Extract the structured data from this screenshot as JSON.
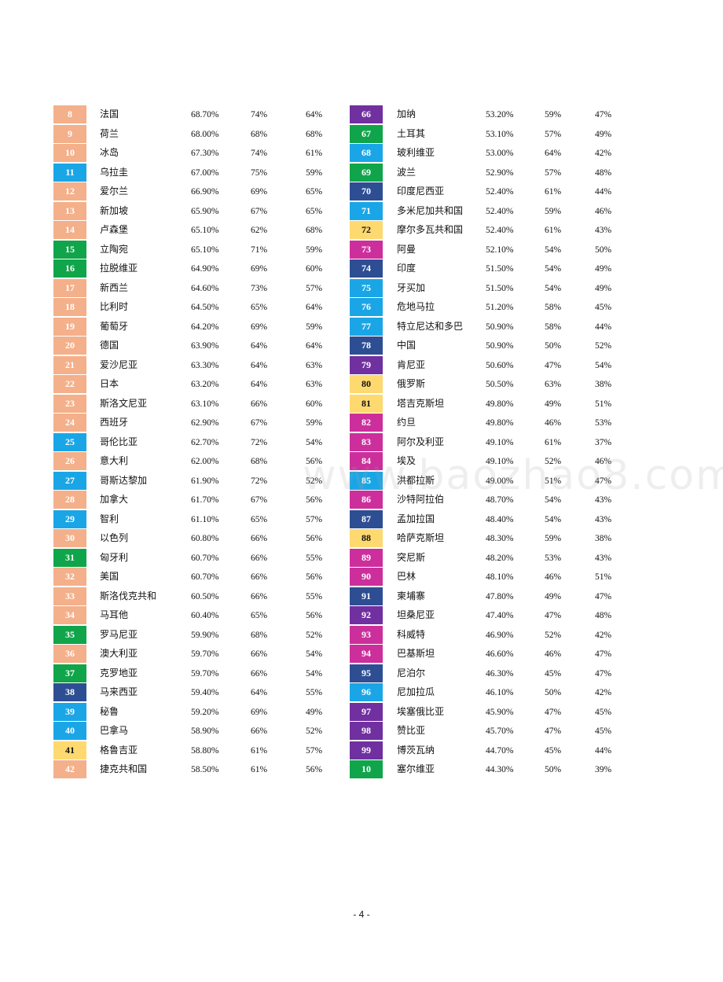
{
  "watermark": "www.baozhao8.com",
  "footer": "- 4 -",
  "colors": {
    "peach": "#F4B08A",
    "blue": "#1AA6E6",
    "green": "#10A54A",
    "navy": "#2E4E93",
    "yellow": "#FDD970",
    "purple": "#7030A0",
    "magenta": "#CC2F9C"
  },
  "left_rows": [
    {
      "rank": "8",
      "country": "法国",
      "v1": "68.70%",
      "v2": "74%",
      "v3": "64%",
      "color": "peach"
    },
    {
      "rank": "9",
      "country": "荷兰",
      "v1": "68.00%",
      "v2": "68%",
      "v3": "68%",
      "color": "peach"
    },
    {
      "rank": "10",
      "country": "冰岛",
      "v1": "67.30%",
      "v2": "74%",
      "v3": "61%",
      "color": "peach"
    },
    {
      "rank": "11",
      "country": "乌拉圭",
      "v1": "67.00%",
      "v2": "75%",
      "v3": "59%",
      "color": "blue"
    },
    {
      "rank": "12",
      "country": "爱尔兰",
      "v1": "66.90%",
      "v2": "69%",
      "v3": "65%",
      "color": "peach"
    },
    {
      "rank": "13",
      "country": "新加坡",
      "v1": "65.90%",
      "v2": "67%",
      "v3": "65%",
      "color": "peach"
    },
    {
      "rank": "14",
      "country": "卢森堡",
      "v1": "65.10%",
      "v2": "62%",
      "v3": "68%",
      "color": "peach"
    },
    {
      "rank": "15",
      "country": "立陶宛",
      "v1": "65.10%",
      "v2": "71%",
      "v3": "59%",
      "color": "green"
    },
    {
      "rank": "16",
      "country": "拉脱维亚",
      "v1": "64.90%",
      "v2": "69%",
      "v3": "60%",
      "color": "green"
    },
    {
      "rank": "17",
      "country": "新西兰",
      "v1": "64.60%",
      "v2": "73%",
      "v3": "57%",
      "color": "peach"
    },
    {
      "rank": "18",
      "country": "比利时",
      "v1": "64.50%",
      "v2": "65%",
      "v3": "64%",
      "color": "peach"
    },
    {
      "rank": "19",
      "country": "葡萄牙",
      "v1": "64.20%",
      "v2": "69%",
      "v3": "59%",
      "color": "peach"
    },
    {
      "rank": "20",
      "country": "德国",
      "v1": "63.90%",
      "v2": "64%",
      "v3": "64%",
      "color": "peach"
    },
    {
      "rank": "21",
      "country": "爱沙尼亚",
      "v1": "63.30%",
      "v2": "64%",
      "v3": "63%",
      "color": "peach"
    },
    {
      "rank": "22",
      "country": "日本",
      "v1": "63.20%",
      "v2": "64%",
      "v3": "63%",
      "color": "peach"
    },
    {
      "rank": "23",
      "country": "斯洛文尼亚",
      "v1": "63.10%",
      "v2": "66%",
      "v3": "60%",
      "color": "peach"
    },
    {
      "rank": "24",
      "country": "西班牙",
      "v1": "62.90%",
      "v2": "67%",
      "v3": "59%",
      "color": "peach"
    },
    {
      "rank": "25",
      "country": "哥伦比亚",
      "v1": "62.70%",
      "v2": "72%",
      "v3": "54%",
      "color": "blue"
    },
    {
      "rank": "26",
      "country": "意大利",
      "v1": "62.00%",
      "v2": "68%",
      "v3": "56%",
      "color": "peach"
    },
    {
      "rank": "27",
      "country": "哥斯达黎加",
      "v1": "61.90%",
      "v2": "72%",
      "v3": "52%",
      "color": "blue"
    },
    {
      "rank": "28",
      "country": "加拿大",
      "v1": "61.70%",
      "v2": "67%",
      "v3": "56%",
      "color": "peach"
    },
    {
      "rank": "29",
      "country": "智利",
      "v1": "61.10%",
      "v2": "65%",
      "v3": "57%",
      "color": "blue"
    },
    {
      "rank": "30",
      "country": "以色列",
      "v1": "60.80%",
      "v2": "66%",
      "v3": "56%",
      "color": "peach"
    },
    {
      "rank": "31",
      "country": "匈牙利",
      "v1": "60.70%",
      "v2": "66%",
      "v3": "55%",
      "color": "green"
    },
    {
      "rank": "32",
      "country": "美国",
      "v1": "60.70%",
      "v2": "66%",
      "v3": "56%",
      "color": "peach"
    },
    {
      "rank": "33",
      "country": "斯洛伐克共和",
      "v1": "60.50%",
      "v2": "66%",
      "v3": "55%",
      "color": "peach"
    },
    {
      "rank": "34",
      "country": "马耳他",
      "v1": "60.40%",
      "v2": "65%",
      "v3": "56%",
      "color": "peach"
    },
    {
      "rank": "35",
      "country": "罗马尼亚",
      "v1": "59.90%",
      "v2": "68%",
      "v3": "52%",
      "color": "green"
    },
    {
      "rank": "36",
      "country": "澳大利亚",
      "v1": "59.70%",
      "v2": "66%",
      "v3": "54%",
      "color": "peach"
    },
    {
      "rank": "37",
      "country": "克罗地亚",
      "v1": "59.70%",
      "v2": "66%",
      "v3": "54%",
      "color": "green"
    },
    {
      "rank": "38",
      "country": "马来西亚",
      "v1": "59.40%",
      "v2": "64%",
      "v3": "55%",
      "color": "navy"
    },
    {
      "rank": "39",
      "country": "秘鲁",
      "v1": "59.20%",
      "v2": "69%",
      "v3": "49%",
      "color": "blue"
    },
    {
      "rank": "40",
      "country": "巴拿马",
      "v1": "58.90%",
      "v2": "66%",
      "v3": "52%",
      "color": "blue"
    },
    {
      "rank": "41",
      "country": "格鲁吉亚",
      "v1": "58.80%",
      "v2": "61%",
      "v3": "57%",
      "color": "yellow"
    },
    {
      "rank": "42",
      "country": "捷克共和国",
      "v1": "58.50%",
      "v2": "61%",
      "v3": "56%",
      "color": "peach"
    }
  ],
  "right_rows": [
    {
      "rank": "66",
      "country": "加纳",
      "v1": "53.20%",
      "v2": "59%",
      "v3": "47%",
      "color": "purple"
    },
    {
      "rank": "67",
      "country": "土耳其",
      "v1": "53.10%",
      "v2": "57%",
      "v3": "49%",
      "color": "green"
    },
    {
      "rank": "68",
      "country": "玻利维亚",
      "v1": "53.00%",
      "v2": "64%",
      "v3": "42%",
      "color": "blue"
    },
    {
      "rank": "69",
      "country": "波兰",
      "v1": "52.90%",
      "v2": "57%",
      "v3": "48%",
      "color": "green"
    },
    {
      "rank": "70",
      "country": "印度尼西亚",
      "v1": "52.40%",
      "v2": "61%",
      "v3": "44%",
      "color": "navy"
    },
    {
      "rank": "71",
      "country": "多米尼加共和国",
      "v1": "52.40%",
      "v2": "59%",
      "v3": "46%",
      "color": "blue"
    },
    {
      "rank": "72",
      "country": "摩尔多瓦共和国",
      "v1": "52.40%",
      "v2": "61%",
      "v3": "43%",
      "color": "yellow"
    },
    {
      "rank": "73",
      "country": "阿曼",
      "v1": "52.10%",
      "v2": "54%",
      "v3": "50%",
      "color": "magenta"
    },
    {
      "rank": "74",
      "country": "印度",
      "v1": "51.50%",
      "v2": "54%",
      "v3": "49%",
      "color": "navy"
    },
    {
      "rank": "75",
      "country": "牙买加",
      "v1": "51.50%",
      "v2": "54%",
      "v3": "49%",
      "color": "blue"
    },
    {
      "rank": "76",
      "country": "危地马拉",
      "v1": "51.20%",
      "v2": "58%",
      "v3": "45%",
      "color": "blue"
    },
    {
      "rank": "77",
      "country": "特立尼达和多巴",
      "v1": "50.90%",
      "v2": "58%",
      "v3": "44%",
      "color": "blue"
    },
    {
      "rank": "78",
      "country": "中国",
      "v1": "50.90%",
      "v2": "50%",
      "v3": "52%",
      "color": "navy"
    },
    {
      "rank": "79",
      "country": "肯尼亚",
      "v1": "50.60%",
      "v2": "47%",
      "v3": "54%",
      "color": "purple"
    },
    {
      "rank": "80",
      "country": "俄罗斯",
      "v1": "50.50%",
      "v2": "63%",
      "v3": "38%",
      "color": "yellow"
    },
    {
      "rank": "81",
      "country": "塔吉克斯坦",
      "v1": "49.80%",
      "v2": "49%",
      "v3": "51%",
      "color": "yellow"
    },
    {
      "rank": "82",
      "country": "约旦",
      "v1": "49.80%",
      "v2": "46%",
      "v3": "53%",
      "color": "magenta"
    },
    {
      "rank": "83",
      "country": "阿尔及利亚",
      "v1": "49.10%",
      "v2": "61%",
      "v3": "37%",
      "color": "magenta"
    },
    {
      "rank": "84",
      "country": "埃及",
      "v1": "49.10%",
      "v2": "52%",
      "v3": "46%",
      "color": "magenta"
    },
    {
      "rank": "85",
      "country": "洪都拉斯",
      "v1": "49.00%",
      "v2": "51%",
      "v3": "47%",
      "color": "blue"
    },
    {
      "rank": "86",
      "country": "沙特阿拉伯",
      "v1": "48.70%",
      "v2": "54%",
      "v3": "43%",
      "color": "magenta"
    },
    {
      "rank": "87",
      "country": "孟加拉国",
      "v1": "48.40%",
      "v2": "54%",
      "v3": "43%",
      "color": "navy"
    },
    {
      "rank": "88",
      "country": "哈萨克斯坦",
      "v1": "48.30%",
      "v2": "59%",
      "v3": "38%",
      "color": "yellow"
    },
    {
      "rank": "89",
      "country": "突尼斯",
      "v1": "48.20%",
      "v2": "53%",
      "v3": "43%",
      "color": "magenta"
    },
    {
      "rank": "90",
      "country": "巴林",
      "v1": "48.10%",
      "v2": "46%",
      "v3": "51%",
      "color": "magenta"
    },
    {
      "rank": "91",
      "country": "柬埔寨",
      "v1": "47.80%",
      "v2": "49%",
      "v3": "47%",
      "color": "navy"
    },
    {
      "rank": "92",
      "country": "坦桑尼亚",
      "v1": "47.40%",
      "v2": "47%",
      "v3": "48%",
      "color": "purple"
    },
    {
      "rank": "93",
      "country": "科威特",
      "v1": "46.90%",
      "v2": "52%",
      "v3": "42%",
      "color": "magenta"
    },
    {
      "rank": "94",
      "country": "巴基斯坦",
      "v1": "46.60%",
      "v2": "46%",
      "v3": "47%",
      "color": "magenta"
    },
    {
      "rank": "95",
      "country": "尼泊尔",
      "v1": "46.30%",
      "v2": "45%",
      "v3": "47%",
      "color": "navy"
    },
    {
      "rank": "96",
      "country": "尼加拉瓜",
      "v1": "46.10%",
      "v2": "50%",
      "v3": "42%",
      "color": "blue"
    },
    {
      "rank": "97",
      "country": "埃塞俄比亚",
      "v1": "45.90%",
      "v2": "47%",
      "v3": "45%",
      "color": "purple"
    },
    {
      "rank": "98",
      "country": "赞比亚",
      "v1": "45.70%",
      "v2": "47%",
      "v3": "45%",
      "color": "purple"
    },
    {
      "rank": "99",
      "country": "博茨瓦纳",
      "v1": "44.70%",
      "v2": "45%",
      "v3": "44%",
      "color": "purple"
    },
    {
      "rank": "10",
      "country": "塞尔维亚",
      "v1": "44.30%",
      "v2": "50%",
      "v3": "39%",
      "color": "green"
    }
  ]
}
